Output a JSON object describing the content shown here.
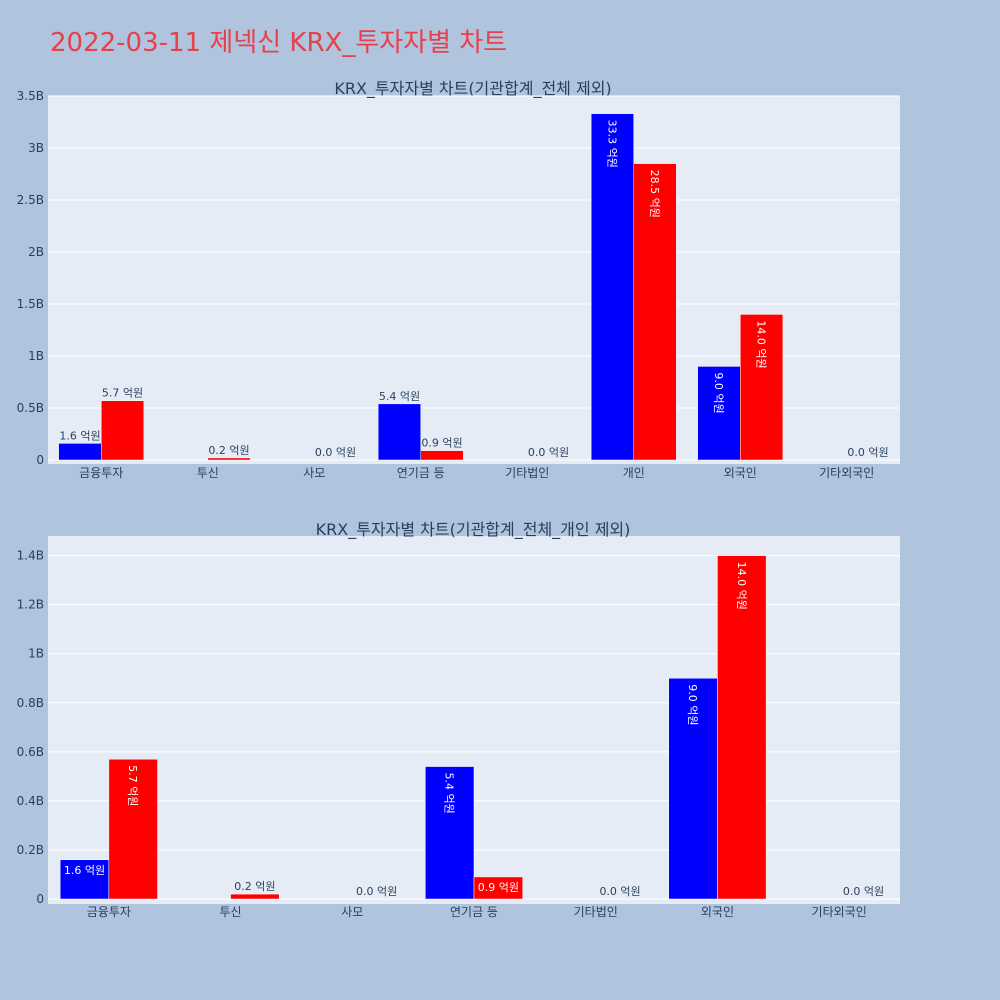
{
  "page": {
    "title": "2022-03-11 제넥신 KRX_투자자별 차트"
  },
  "chart_data": [
    {
      "type": "bar",
      "title": "KRX_투자자별 차트(기관합계_전체 제외)",
      "categories": [
        "금융투자",
        "투신",
        "사모",
        "연기금 등",
        "기타법인",
        "개인",
        "외국인",
        "기타외국인"
      ],
      "y_tick_labels": [
        "0",
        "0.5B",
        "1B",
        "1.5B",
        "2B",
        "2.5B",
        "3B",
        "3.5B"
      ],
      "y_tick_values": [
        0,
        0.5,
        1,
        1.5,
        2,
        2.5,
        3,
        3.5
      ],
      "ylim": [
        0,
        3.5
      ],
      "unit": "B",
      "grid": true,
      "series": [
        {
          "color": "#0000ff",
          "values": [
            0.16,
            0,
            0,
            0.54,
            0,
            3.33,
            0.9,
            0
          ],
          "labels": [
            "1.6 억원",
            "",
            "",
            "5.4 억원",
            "",
            "33.3 억원",
            "9.0 억원",
            ""
          ]
        },
        {
          "color": "#ff0000",
          "values": [
            0.57,
            0.02,
            0.0,
            0.09,
            0.0,
            2.85,
            1.4,
            0.0
          ],
          "labels": [
            "5.7 억원",
            "0.2 억원",
            "0.0 억원",
            "0.9 억원",
            "0.0 억원",
            "28.5 억원",
            "14.0 억원",
            "0.0 억원"
          ]
        }
      ]
    },
    {
      "type": "bar",
      "title": "KRX_투자자별 차트(기관합계_전체_개인 제외)",
      "categories": [
        "금융투자",
        "투신",
        "사모",
        "연기금 등",
        "기타법인",
        "외국인",
        "기타외국인"
      ],
      "y_tick_labels": [
        "0",
        "0.2B",
        "0.4B",
        "0.6B",
        "0.8B",
        "1B",
        "1.2B",
        "1.4B"
      ],
      "y_tick_values": [
        0,
        0.2,
        0.4,
        0.6,
        0.8,
        1.0,
        1.2,
        1.4
      ],
      "ylim": [
        0,
        1.48
      ],
      "unit": "B",
      "grid": true,
      "series": [
        {
          "color": "#0000ff",
          "values": [
            0.16,
            0,
            0,
            0.54,
            0,
            0.9,
            0
          ],
          "labels": [
            "1.6 억원",
            "",
            "",
            "5.4 억원",
            "",
            "9.0 억원",
            ""
          ]
        },
        {
          "color": "#ff0000",
          "values": [
            0.57,
            0.02,
            0.0,
            0.09,
            0.0,
            1.4,
            0.0
          ],
          "labels": [
            "5.7 억원",
            "0.2 억원",
            "0.0 억원",
            "0.9 억원",
            "0.0 억원",
            "14.0 억원",
            "0.0 억원"
          ]
        }
      ]
    }
  ]
}
